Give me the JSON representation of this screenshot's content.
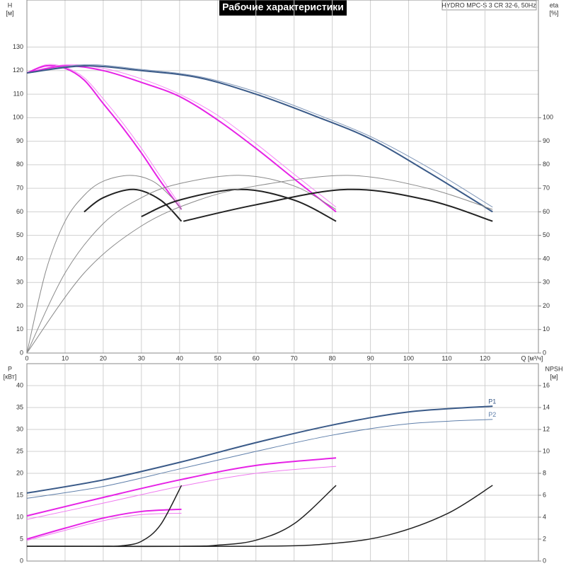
{
  "title": "Рабочие характеристики",
  "model": "HYDRO MPC-S 3 CR 32-6, 50Hz",
  "chart_data": [
    {
      "type": "line",
      "y_label": "H",
      "y_unit": "[м]",
      "y2_label": "eta",
      "y2_unit": "[%]",
      "x_label": "Q [м³/ч]",
      "xlim": [
        0,
        134
      ],
      "xticks": [
        0,
        10,
        20,
        30,
        40,
        50,
        60,
        70,
        80,
        90,
        100,
        110,
        120
      ],
      "ylim": [
        0,
        150
      ],
      "yticks": [
        0,
        10,
        20,
        30,
        40,
        50,
        60,
        70,
        80,
        90,
        100,
        110,
        120,
        130
      ],
      "y2lim": [
        0,
        150
      ],
      "y2ticks": [
        0,
        10,
        20,
        30,
        40,
        50,
        60,
        70,
        80,
        90,
        100
      ],
      "grid": true,
      "series": [
        {
          "color": "#f58af5",
          "linewidth": 1,
          "x": [
            0,
            5,
            10,
            15,
            20,
            25,
            30,
            35,
            40.5
          ],
          "values": [
            119,
            122.5,
            121.5,
            117,
            108,
            98,
            87,
            75,
            62
          ]
        },
        {
          "color": "#e622e6",
          "linewidth": 2,
          "x": [
            0,
            5,
            10,
            15,
            20,
            25,
            30,
            35,
            40.5
          ],
          "values": [
            119,
            122,
            121,
            116,
            106,
            96,
            85,
            73,
            61
          ]
        },
        {
          "color": "#f58af5",
          "linewidth": 1,
          "x": [
            0,
            10,
            20,
            30,
            40,
            50,
            60,
            70,
            81
          ],
          "values": [
            119,
            122.5,
            121,
            116.5,
            110,
            101,
            89,
            76,
            62
          ]
        },
        {
          "color": "#e622e6",
          "linewidth": 2,
          "x": [
            0,
            10,
            20,
            30,
            40,
            50,
            60,
            70,
            81
          ],
          "values": [
            119,
            122,
            120,
            115,
            109,
            99,
            87,
            74,
            60
          ]
        },
        {
          "color": "#7f96b8",
          "linewidth": 1,
          "x": [
            0,
            15,
            30,
            45,
            60,
            75,
            90,
            105,
            122
          ],
          "values": [
            119,
            122.5,
            120.5,
            117.5,
            111,
            102,
            92,
            79,
            62
          ]
        },
        {
          "color": "#3a5a88",
          "linewidth": 2,
          "x": [
            0,
            15,
            30,
            45,
            60,
            75,
            90,
            105,
            122
          ],
          "values": [
            119,
            122,
            120,
            117,
            110,
            101,
            91,
            77,
            60
          ]
        },
        {
          "axis": "y2",
          "color": "#8a8a8a",
          "linewidth": 1,
          "x": [
            0,
            5,
            10,
            15,
            20,
            27,
            33,
            38,
            40.5
          ],
          "values": [
            0,
            35,
            56,
            67,
            73,
            75.5,
            73,
            66,
            61
          ]
        },
        {
          "axis": "y2",
          "color": "#222222",
          "linewidth": 2,
          "x": [
            15,
            20,
            28,
            35,
            40.5
          ],
          "values": [
            60,
            66,
            69.5,
            65,
            56
          ]
        },
        {
          "axis": "y2",
          "color": "#8a8a8a",
          "linewidth": 1,
          "x": [
            0,
            10,
            20,
            30,
            40,
            56,
            70,
            81
          ],
          "values": [
            0,
            34,
            55,
            66,
            72,
            75.5,
            71,
            61
          ]
        },
        {
          "axis": "y2",
          "color": "#222222",
          "linewidth": 2,
          "x": [
            30,
            40,
            56,
            70,
            81
          ],
          "values": [
            58,
            65,
            69.5,
            65,
            56
          ]
        },
        {
          "axis": "y2",
          "color": "#8a8a8a",
          "linewidth": 1,
          "x": [
            0,
            15,
            30,
            45,
            60,
            84,
            105,
            122
          ],
          "values": [
            0,
            34,
            54,
            65,
            71,
            75.5,
            70,
            61
          ]
        },
        {
          "axis": "y2",
          "color": "#222222",
          "linewidth": 2,
          "x": [
            41,
            60,
            84,
            105,
            122
          ],
          "values": [
            56,
            63,
            69.5,
            65,
            56
          ]
        }
      ]
    },
    {
      "type": "line",
      "y_label": "P",
      "y_unit": "[кВт]",
      "y2_label": "NPSH",
      "y2_unit": "[м]",
      "xlim": [
        0,
        134
      ],
      "xticks": [
        0,
        10,
        20,
        30,
        40,
        50,
        60,
        70,
        80,
        90,
        100,
        110,
        120
      ],
      "ylim": [
        0,
        45
      ],
      "yticks": [
        0,
        5,
        10,
        15,
        20,
        25,
        30,
        35,
        40
      ],
      "y2lim": [
        0,
        18
      ],
      "y2ticks": [
        0,
        2,
        4,
        6,
        8,
        10,
        12,
        14,
        16
      ],
      "grid": true,
      "series": [
        {
          "name": "P1",
          "color": "#3a5a88",
          "linewidth": 2,
          "x": [
            0,
            20,
            40,
            60,
            80,
            100,
            122
          ],
          "values": [
            15.5,
            18.5,
            22.5,
            27,
            31,
            34,
            35.3
          ]
        },
        {
          "name": "P2",
          "color": "#5f7faa",
          "linewidth": 1,
          "x": [
            0,
            20,
            40,
            60,
            80,
            100,
            122
          ],
          "values": [
            14.3,
            17,
            21,
            25,
            28.7,
            31.3,
            32.3
          ]
        },
        {
          "color": "#e622e6",
          "linewidth": 2,
          "x": [
            0,
            20,
            40,
            60,
            81
          ],
          "values": [
            10.3,
            14.5,
            18.5,
            21.8,
            23.5
          ]
        },
        {
          "color": "#f07af0",
          "linewidth": 1,
          "x": [
            0,
            20,
            40,
            60,
            81
          ],
          "values": [
            9.5,
            13.2,
            17,
            20,
            21.6
          ]
        },
        {
          "color": "#e622e6",
          "linewidth": 2,
          "x": [
            0,
            10,
            20,
            30,
            40.5
          ],
          "values": [
            5,
            7.5,
            9.8,
            11.3,
            11.8
          ]
        },
        {
          "color": "#f07af0",
          "linewidth": 1,
          "x": [
            0,
            10,
            20,
            30,
            40.5
          ],
          "values": [
            4.7,
            7,
            9.2,
            10.6,
            10.9
          ]
        },
        {
          "axis": "y2",
          "color": "#222222",
          "linewidth": 1.5,
          "x": [
            0,
            20,
            25,
            30,
            35,
            40.5
          ],
          "values": [
            1.35,
            1.35,
            1.4,
            1.8,
            3.3,
            6.9
          ]
        },
        {
          "axis": "y2",
          "color": "#222222",
          "linewidth": 1.5,
          "x": [
            0,
            40,
            50,
            60,
            70,
            81
          ],
          "values": [
            1.35,
            1.35,
            1.45,
            1.9,
            3.4,
            6.9
          ]
        },
        {
          "axis": "y2",
          "color": "#222222",
          "linewidth": 1.5,
          "x": [
            0,
            60,
            80,
            95,
            110,
            122
          ],
          "values": [
            1.35,
            1.35,
            1.6,
            2.4,
            4.3,
            6.9
          ]
        }
      ]
    }
  ]
}
